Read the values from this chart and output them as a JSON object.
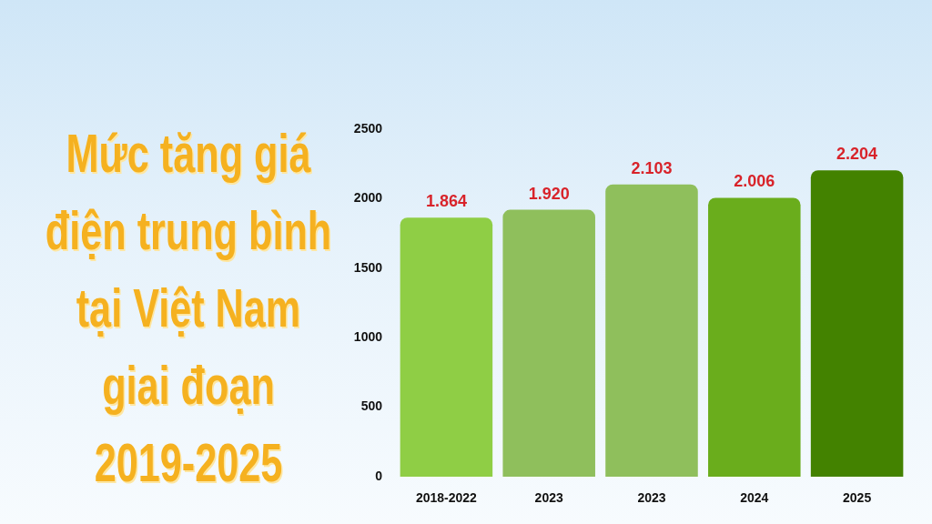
{
  "chart_data": {
    "type": "bar",
    "title": "Mức tăng giá điện trung bình tại Việt Nam giai đoạn 2019-2025",
    "categories": [
      "2018-2022",
      "2023",
      "2023",
      "2024",
      "2025"
    ],
    "values": [
      1864,
      1920,
      2103,
      2006,
      2204
    ],
    "colors": [
      "#8fce45",
      "#8fbf5c",
      "#8fbf5c",
      "#6aad1c",
      "#438200"
    ],
    "value_labels": [
      "1.864",
      "1.920",
      "2.103",
      "2.006",
      "2.204"
    ],
    "ylim": [
      0,
      2500
    ],
    "yticks": [
      0,
      500,
      1000,
      1500,
      2000,
      2500
    ],
    "grid": false,
    "legend": false
  }
}
